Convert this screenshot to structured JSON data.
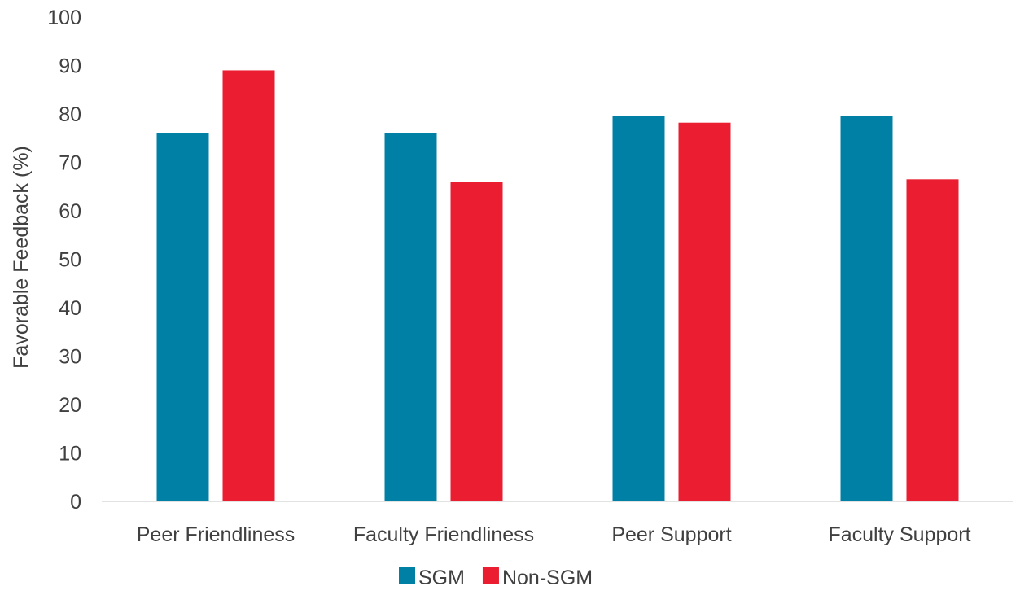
{
  "chart_data": {
    "type": "bar",
    "title": "",
    "xlabel": "",
    "ylabel": "Favorable Feedback (%)",
    "ylim": [
      0,
      100
    ],
    "yticks": [
      0,
      10,
      20,
      30,
      40,
      50,
      60,
      70,
      80,
      90,
      100
    ],
    "categories": [
      "Peer Friendliness",
      "Faculty Friendliness",
      "Peer Support",
      "Faculty Support"
    ],
    "series": [
      {
        "name": "SGM",
        "color": "#0080A4",
        "values": [
          76,
          76,
          79.5,
          79.5
        ]
      },
      {
        "name": "Non-SGM",
        "color": "#EA1E30",
        "values": [
          89,
          66,
          78.2,
          66.5
        ]
      }
    ],
    "grid": false,
    "legend": "bottom-center"
  }
}
